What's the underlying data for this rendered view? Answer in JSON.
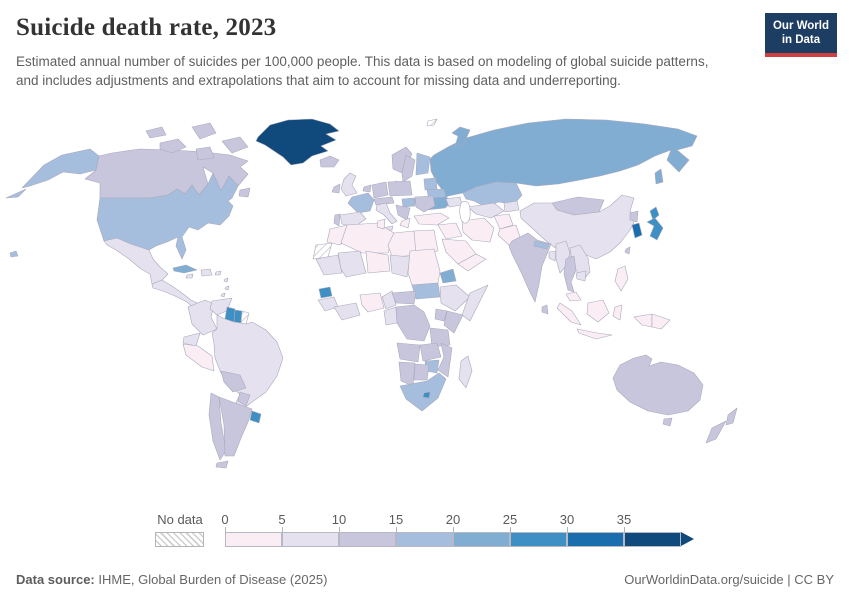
{
  "header": {
    "title": "Suicide death rate, 2023",
    "subtitle": "Estimated annual number of suicides per 100,000 people. This data is based on modeling of global suicide patterns, and includes adjustments and extrapolations that aim to account for missing data and underreporting.",
    "logo": {
      "line1": "Our World",
      "line2": "in Data"
    }
  },
  "legend": {
    "no_data_label": "No data",
    "tick_labels": [
      "0",
      "5",
      "10",
      "15",
      "20",
      "25",
      "30",
      "35"
    ],
    "bin_colors": [
      "#faeef4",
      "#e5e1ee",
      "#c8c6dc",
      "#a6bedd",
      "#82add3",
      "#3e90c4",
      "#1a6eae",
      "#10497b"
    ]
  },
  "footer": {
    "source_label": "Data source:",
    "source_value": " IHME, Global Burden of Disease (2025)",
    "credit": "OurWorldinData.org/suicide | CC BY"
  },
  "map": {
    "ocean_color": "#ffffff",
    "border_color": "#a9a9bc",
    "fills": {
      "alaska": 3,
      "hawaii": 3,
      "usa": 3,
      "canada": 2,
      "greenland": 7,
      "iceland": 2,
      "mexico": 1,
      "central-america": 1,
      "cuba": 4,
      "hispaniola": 1,
      "jamaica": 1,
      "puerto-rico": 1,
      "antilles": 1,
      "colombia": 1,
      "venezuela": 1,
      "guyana": 5,
      "suriname": 5,
      "french-guiana": "nodata",
      "ecuador": 1,
      "peru": 0,
      "brazil": 1,
      "bolivia": 2,
      "paraguay": 2,
      "chile": 2,
      "argentina": 2,
      "uruguay": 5,
      "uk": 1,
      "ireland": 2,
      "norway": 2,
      "sweden": 2,
      "finland": 3,
      "denmark": 2,
      "benelux": 2,
      "germany": 2,
      "poland": 2,
      "france": 3,
      "spain": 1,
      "portugal": 2,
      "italy": 1,
      "switzerland-austria": 2,
      "hungary": 3,
      "balkans": 2,
      "greece": 0,
      "romania": 2,
      "baltics": 3,
      "belarus": 3,
      "ukraine": 4,
      "russia": 4,
      "novaya-zemlya": 4,
      "svalbard": "nodata",
      "sakhalin": 4,
      "kazakhstan": 3,
      "caucasus": 1,
      "turkey": 0,
      "syria-iraq": 0,
      "saudi": 0,
      "yemen-oman": 0,
      "iran": 0,
      "afghanistan": 0,
      "pakistan": 0,
      "turkmen-uzbek": 1,
      "kyrgyz-tajik": 1,
      "mongolia": 2,
      "china": 1,
      "north-korea": 2,
      "south-korea": 6,
      "japan": 5,
      "taiwan": 2,
      "india": 2,
      "nepal": 3,
      "bangladesh": 1,
      "sri-lanka": 2,
      "myanmar": 1,
      "thailand": 2,
      "laos-vietnam": 1,
      "cambodia": 1,
      "malaysia": 0,
      "indonesia": 0,
      "png": 0,
      "philippines": 0,
      "morocco": 0,
      "western-sahara": "nodata",
      "algeria": 0,
      "tunisia": 0,
      "libya": 0,
      "egypt": 0,
      "mauritania": 1,
      "mali": 1,
      "niger": 0,
      "chad": 1,
      "sudan": 0,
      "south-sudan": 3,
      "eritrea": 4,
      "ethiopia": 1,
      "somalia": 1,
      "senegal": 5,
      "guinea": 1,
      "ivory-ghana": 1,
      "nigeria": 0,
      "cameroon": 1,
      "car": 2,
      "gabon-congo": 1,
      "drc": 2,
      "uganda": 2,
      "kenya": 2,
      "tanzania": 2,
      "angola": 2,
      "zambia": 2,
      "mozambique": 2,
      "zimbabwe": 3,
      "namibia": 2,
      "botswana": 2,
      "south-africa": 3,
      "lesotho": 5,
      "madagascar": 1,
      "australia": 2,
      "new-zealand": 2
    }
  },
  "chart_data": {
    "type": "heatmap",
    "title": "Suicide death rate, 2023",
    "unit": "suicides per 100,000 people",
    "legend_position": "bottom",
    "bins": [
      "0-5",
      "5-10",
      "10-15",
      "15-20",
      "20-25",
      "25-30",
      "30-35",
      "35+"
    ],
    "bin_colors": [
      "#faeef4",
      "#e5e1ee",
      "#c8c6dc",
      "#a6bedd",
      "#82add3",
      "#3e90c4",
      "#1a6eae",
      "#10497b"
    ],
    "no_data": "hatched",
    "values_by_region": {
      "Greenland": "35+",
      "South Korea": "30-35",
      "Japan": "25-30",
      "Guyana": "25-30",
      "Suriname": "25-30",
      "Uruguay": "25-30",
      "Lesotho": "25-30",
      "Senegal": "25-30",
      "Russia": "20-25",
      "Ukraine": "20-25",
      "Cuba": "20-25",
      "Eritrea": "20-25",
      "United States": "15-20",
      "France": "15-20",
      "Finland": "15-20",
      "Kazakhstan": "15-20",
      "Nepal": "15-20",
      "South Africa": "15-20",
      "Zimbabwe": "15-20",
      "South Sudan": "15-20",
      "Baltic states": "15-20",
      "Belarus": "15-20",
      "Hungary": "15-20",
      "Canada": "10-15",
      "Australia": "10-15",
      "New Zealand": "10-15",
      "India": "10-15",
      "Argentina": "10-15",
      "Chile": "10-15",
      "Bolivia": "10-15",
      "Sweden": "10-15",
      "Norway": "10-15",
      "Germany": "10-15",
      "Poland": "10-15",
      "Mongolia": "10-15",
      "Thailand": "10-15",
      "DR Congo": "10-15",
      "Kenya": "10-15",
      "Tanzania": "10-15",
      "Botswana": "10-15",
      "Namibia": "10-15",
      "Iceland": "10-15",
      "China": "5-10",
      "Brazil": "5-10",
      "Mexico": "5-10",
      "United Kingdom": "5-10",
      "Spain": "5-10",
      "Italy": "5-10",
      "Colombia": "5-10",
      "Venezuela": "5-10",
      "Ethiopia": "5-10",
      "Madagascar": "5-10",
      "Myanmar": "5-10",
      "Vietnam": "5-10",
      "Mali": "5-10",
      "Chad": "5-10",
      "Peru": "0-5",
      "Indonesia": "0-5",
      "Philippines": "0-5",
      "Pakistan": "0-5",
      "Iran": "0-5",
      "Saudi Arabia": "0-5",
      "Turkey": "0-5",
      "Egypt": "0-5",
      "Libya": "0-5",
      "Algeria": "0-5",
      "Morocco": "0-5",
      "Nigeria": "0-5",
      "Niger": "0-5",
      "Sudan": "0-5",
      "Greece": "0-5",
      "Western Sahara": "No data",
      "French Guiana": "No data"
    }
  }
}
